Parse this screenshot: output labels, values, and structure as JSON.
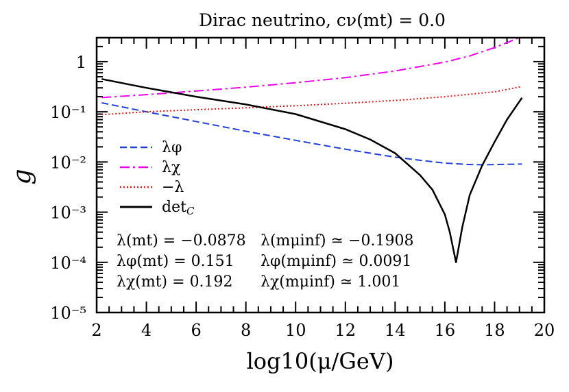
{
  "chart_data": {
    "type": "line",
    "title": "Dirac neutrino, cν(mt) = 0.0",
    "xlabel": "log10(μ/GeV)",
    "ylabel": "g",
    "xlim": [
      2,
      20
    ],
    "ylim": [
      1e-05,
      3
    ],
    "yscale": "log",
    "grid": false,
    "legend_position": "left",
    "x_ticks": [
      "2",
      "4",
      "6",
      "8",
      "10",
      "12",
      "14",
      "16",
      "18",
      "20"
    ],
    "y_ticks": [
      "1",
      "10⁻¹",
      "10⁻²",
      "10⁻³",
      "10⁻⁴",
      "10⁻⁵"
    ],
    "series": [
      {
        "name": "λφ",
        "color": "#1f3fdd",
        "style": "dashed",
        "x": [
          2.2,
          4,
          6,
          8,
          10,
          12,
          14,
          15,
          16,
          17,
          17.6,
          18,
          19.1
        ],
        "y": [
          0.151,
          0.1,
          0.064,
          0.041,
          0.027,
          0.018,
          0.0125,
          0.0108,
          0.0095,
          0.0089,
          0.0088,
          0.0089,
          0.0091
        ]
      },
      {
        "name": "λχ",
        "color": "#ee00ee",
        "style": "dash-dot",
        "x": [
          2.2,
          4,
          6,
          8,
          10,
          12,
          14,
          16,
          17,
          18,
          18.6,
          19.1
        ],
        "y": [
          0.192,
          0.22,
          0.26,
          0.31,
          0.38,
          0.48,
          0.65,
          0.98,
          1.3,
          1.9,
          2.5,
          3.2
        ]
      },
      {
        "name": "−λ",
        "color": "#ee1111",
        "style": "dotted",
        "x": [
          2.2,
          4,
          6,
          8,
          10,
          12,
          14,
          16,
          18,
          19.1
        ],
        "y": [
          0.0878,
          0.1,
          0.11,
          0.12,
          0.132,
          0.148,
          0.168,
          0.2,
          0.25,
          0.32
        ]
      },
      {
        "name": "det",
        "name_sub": "C",
        "color": "#000000",
        "style": "solid",
        "x": [
          2.2,
          4,
          6,
          8,
          10,
          12,
          13,
          14,
          15,
          15.5,
          16,
          16.2,
          16.45,
          16.7,
          17,
          17.5,
          18,
          18.5,
          19.1
        ],
        "y": [
          0.45,
          0.3,
          0.2,
          0.14,
          0.09,
          0.045,
          0.028,
          0.015,
          0.0055,
          0.0028,
          0.0009,
          0.0004,
          0.0001,
          0.0005,
          0.0022,
          0.0085,
          0.025,
          0.07,
          0.19
        ]
      }
    ],
    "annotations": [
      {
        "left": "λ(mt) = −0.0878",
        "right": "λ(mμinf) ≃ −0.1908"
      },
      {
        "left": "λφ(mt) = 0.151",
        "right": "λφ(mμinf) ≃ 0.0091"
      },
      {
        "left": "λχ(mt) = 0.192",
        "right": "λχ(mμinf) ≃ 1.001"
      }
    ]
  }
}
